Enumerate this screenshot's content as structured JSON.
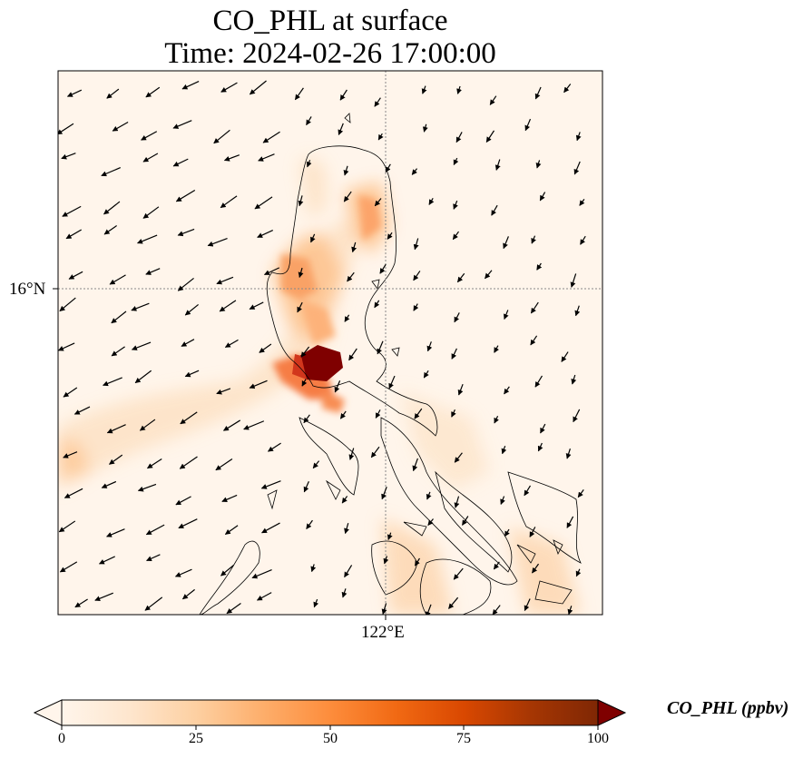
{
  "title": {
    "line1": "CO_PHL at surface",
    "line2": "Time: 2024-02-26 17:00:00"
  },
  "map": {
    "lat_label": "16°N",
    "lon_label": "122°E",
    "background_color": "#fff5eb",
    "coastline_color": "#000000",
    "gridline_style": "dotted",
    "wind_arrow_color": "#000000"
  },
  "colorbar": {
    "label": "CO_PHL (ppbv)",
    "colormap": "Oranges",
    "ticks": [
      "0",
      "25",
      "50",
      "75",
      "100"
    ],
    "range": [
      0,
      100
    ],
    "extend": "both"
  }
}
